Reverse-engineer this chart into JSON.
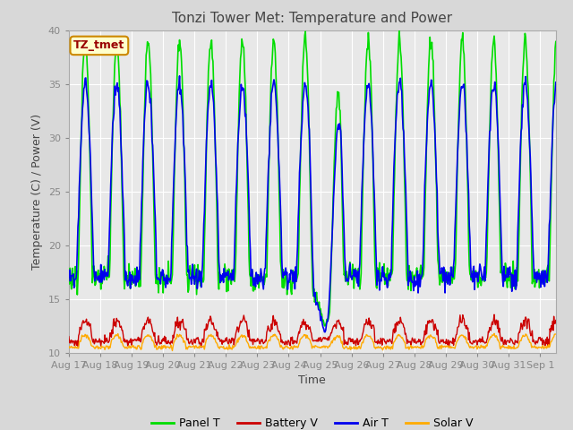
{
  "title": "Tonzi Tower Met: Temperature and Power",
  "xlabel": "Time",
  "ylabel": "Temperature (C) / Power (V)",
  "ylim": [
    10,
    40
  ],
  "yticks": [
    10,
    15,
    20,
    25,
    30,
    35,
    40
  ],
  "xlim": [
    17,
    32.5
  ],
  "xtick_positions": [
    17,
    18,
    19,
    20,
    21,
    22,
    23,
    24,
    25,
    26,
    27,
    28,
    29,
    30,
    31,
    32
  ],
  "xtick_labels": [
    "Aug 17",
    "Aug 18",
    "Aug 19",
    "Aug 20",
    "Aug 21",
    "Aug 22",
    "Aug 23",
    "Aug 24",
    "Aug 25",
    "Aug 26",
    "Aug 27",
    "Aug 28",
    "Aug 29",
    "Aug 30",
    "Aug 31",
    "Sep 1"
  ],
  "fig_facecolor": "#d8d8d8",
  "axes_facecolor": "#e8e8e8",
  "panel_T_color": "#00dd00",
  "battery_V_color": "#cc0000",
  "air_T_color": "#0000ee",
  "solar_V_color": "#ffaa00",
  "annotation_text": "TZ_tmet",
  "annotation_facecolor": "#ffffcc",
  "annotation_edgecolor": "#cc8800",
  "grid_color": "#ffffff",
  "spine_color": "#aaaaaa",
  "tick_color": "#888888",
  "title_fontsize": 11,
  "label_fontsize": 9,
  "tick_fontsize": 8,
  "legend_fontsize": 9
}
